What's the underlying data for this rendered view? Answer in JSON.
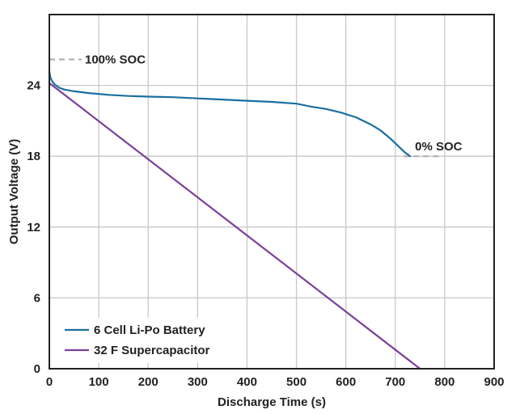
{
  "chart_data": {
    "type": "line",
    "xlabel": "Discharge Time (s)",
    "ylabel": "Output Voltage (V)",
    "xlim": [
      0,
      900
    ],
    "ylim": [
      0,
      30
    ],
    "xticks": [
      0,
      100,
      200,
      300,
      400,
      500,
      600,
      700,
      800,
      900
    ],
    "yticks": [
      0,
      6,
      12,
      18,
      24
    ],
    "grid": true,
    "legend_position": "bottom-left",
    "series": [
      {
        "name": "6 Cell Li-Po Battery",
        "color": "#1a6fa0",
        "x": [
          0,
          2,
          5,
          10,
          20,
          30,
          50,
          80,
          120,
          160,
          200,
          250,
          300,
          350,
          400,
          450,
          500,
          530,
          560,
          590,
          620,
          650,
          670,
          690,
          705,
          720,
          730
        ],
        "y": [
          25.2,
          24.7,
          24.4,
          24.1,
          23.8,
          23.65,
          23.5,
          23.35,
          23.2,
          23.1,
          23.05,
          23.0,
          22.9,
          22.8,
          22.7,
          22.6,
          22.45,
          22.2,
          22.0,
          21.7,
          21.3,
          20.7,
          20.2,
          19.5,
          18.9,
          18.3,
          18.0
        ]
      },
      {
        "name": "32 F Supercapacitor",
        "color": "#7b3f98",
        "x": [
          0,
          750
        ],
        "y": [
          24.2,
          0
        ]
      }
    ],
    "annotations": [
      {
        "text": "100% SOC",
        "x": 0,
        "y": 26.2
      },
      {
        "text": "0% SOC",
        "x": 730,
        "y": 18
      }
    ]
  }
}
